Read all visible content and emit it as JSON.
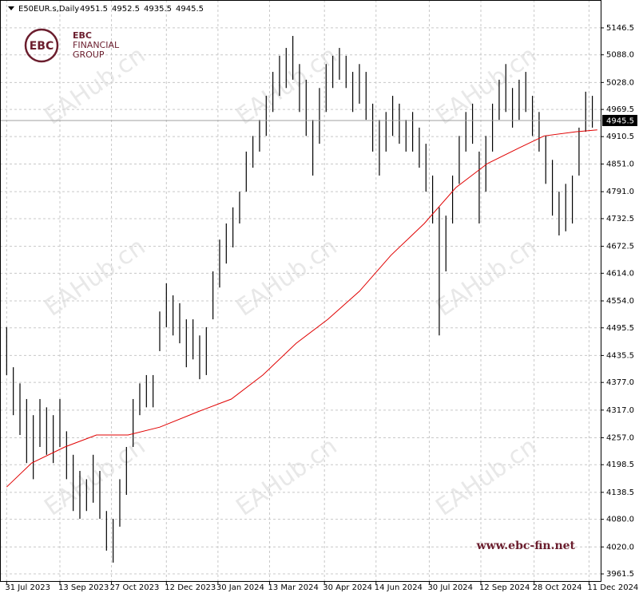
{
  "chart_data": {
    "type": "hilo",
    "title": "E50EUR.s,Daily",
    "ohlc": [
      4951.5,
      4952.5,
      4935.5,
      4945.5
    ],
    "last_price": {
      "value": 4945.5,
      "label": "4945.5"
    },
    "logo": {
      "mark": "EBC",
      "line1": "FINANCIAL",
      "line2": "GROUP"
    },
    "watermark": "EAHub.cn",
    "website": "www.ebc-fin.net",
    "ylim": [
      3946,
      5207
    ],
    "xlim": [
      -4,
      357
    ],
    "grid": true,
    "yticks": [
      5146.5,
      {
        "value": 5088,
        "label": "5088.0"
      },
      {
        "value": 5028,
        "label": "5028.0"
      },
      4969.5,
      4910.5,
      {
        "value": 4851,
        "label": "4851.0"
      },
      {
        "value": 4791,
        "label": "4791.0"
      },
      4732.5,
      4672.5,
      {
        "value": 4614,
        "label": "4614.0"
      },
      {
        "value": 4554,
        "label": "4554.0"
      },
      4495.5,
      4435.5,
      {
        "value": 4377,
        "label": "4377.0"
      },
      {
        "value": 4317,
        "label": "4317.0"
      },
      {
        "value": 4257,
        "label": "4257.0"
      },
      4198.5,
      4138.5,
      {
        "value": 4080,
        "label": "4080.0"
      },
      {
        "value": 4020,
        "label": "4020.0"
      },
      3961.5
    ],
    "xticks": [
      {
        "value": 0,
        "label": "31 Jul 2023"
      },
      {
        "value": 32,
        "label": "13 Sep 2023"
      },
      {
        "value": 63,
        "label": "27 Oct 2023"
      },
      {
        "value": 96,
        "label": "12 Dec 2023"
      },
      {
        "value": 127,
        "label": "30 Jan 2024"
      },
      {
        "value": 158,
        "label": "13 Mar 2024"
      },
      {
        "value": 191,
        "label": "30 Apr 2024"
      },
      {
        "value": 222,
        "label": "14 Jun 2024"
      },
      {
        "value": 254,
        "label": "30 Jul 2024"
      },
      {
        "value": 285,
        "label": "12 Sep 2024"
      },
      {
        "value": 317,
        "label": "28 Oct 2024"
      },
      {
        "value": 350,
        "label": "11 Dec 2024"
      }
    ],
    "bars": {
      "color": "#000000",
      "x": [
        0,
        4,
        8,
        12,
        16,
        20,
        24,
        28,
        32,
        36,
        40,
        44,
        48,
        52,
        56,
        60,
        64,
        68,
        72,
        76,
        80,
        84,
        88,
        92,
        96,
        100,
        104,
        108,
        112,
        116,
        120,
        124,
        128,
        132,
        136,
        140,
        144,
        148,
        152,
        156,
        160,
        164,
        168,
        172,
        176,
        180,
        184,
        188,
        192,
        196,
        200,
        204,
        208,
        212,
        216,
        220,
        224,
        228,
        232,
        236,
        240,
        244,
        248,
        252,
        256,
        260,
        264,
        268,
        272,
        276,
        280,
        284,
        288,
        292,
        296,
        300,
        304,
        308,
        312,
        316,
        320,
        324,
        328,
        332,
        336,
        340,
        344,
        348,
        352
      ],
      "high": [
        4497,
        4410,
        4375,
        4341,
        4306,
        4341,
        4323,
        4306,
        4341,
        4271,
        4220,
        4185,
        4167,
        4220,
        4185,
        4098,
        4081,
        4167,
        4237,
        4341,
        4375,
        4393,
        4393,
        4531,
        4592,
        4566,
        4549,
        4514,
        4514,
        4479,
        4497,
        4618,
        4687,
        4722,
        4757,
        4791,
        4878,
        4912,
        4947,
        4999,
        5051,
        5086,
        5103,
        5129,
        5068,
        5034,
        4947,
        5016,
        5068,
        5086,
        5103,
        5086,
        5051,
        5068,
        5051,
        4982,
        4947,
        4964,
        4999,
        4982,
        4947,
        4964,
        4930,
        4895,
        4826,
        4757,
        4739,
        4826,
        4912,
        4964,
        4982,
        4878,
        4912,
        4982,
        5034,
        5068,
        5016,
        5034,
        5051,
        4999,
        4964,
        4912,
        4860,
        4791,
        4808,
        4826,
        4930,
        5008,
        4999
      ],
      "low": [
        4393,
        4306,
        4263,
        4202,
        4167,
        4237,
        4220,
        4202,
        4237,
        4167,
        4098,
        4081,
        4098,
        4116,
        4081,
        4012,
        3986,
        4064,
        4133,
        4237,
        4306,
        4323,
        4323,
        4445,
        4497,
        4479,
        4462,
        4410,
        4427,
        4384,
        4393,
        4514,
        4583,
        4635,
        4670,
        4722,
        4791,
        4843,
        4878,
        4912,
        4964,
        4999,
        5016,
        5034,
        4964,
        4912,
        4826,
        4895,
        4964,
        5016,
        5034,
        5016,
        4964,
        4982,
        4947,
        4878,
        4826,
        4878,
        4912,
        4895,
        4878,
        4878,
        4843,
        4791,
        4722,
        4479,
        4618,
        4722,
        4808,
        4878,
        4895,
        4722,
        4791,
        4878,
        4947,
        4964,
        4930,
        4947,
        4964,
        4912,
        4878,
        4808,
        4739,
        4696,
        4705,
        4722,
        4826,
        4921,
        4930
      ]
    },
    "ma": {
      "color": "#e00000",
      "x": [
        0,
        15,
        35,
        54,
        73,
        92,
        116,
        135,
        154,
        174,
        193,
        212,
        231,
        251,
        270,
        289,
        308,
        323,
        342,
        355
      ],
      "values": [
        4150,
        4202,
        4237,
        4263,
        4263,
        4280,
        4315,
        4341,
        4393,
        4462,
        4514,
        4575,
        4653,
        4722,
        4800,
        4852,
        4886,
        4912,
        4921,
        4925
      ]
    }
  }
}
